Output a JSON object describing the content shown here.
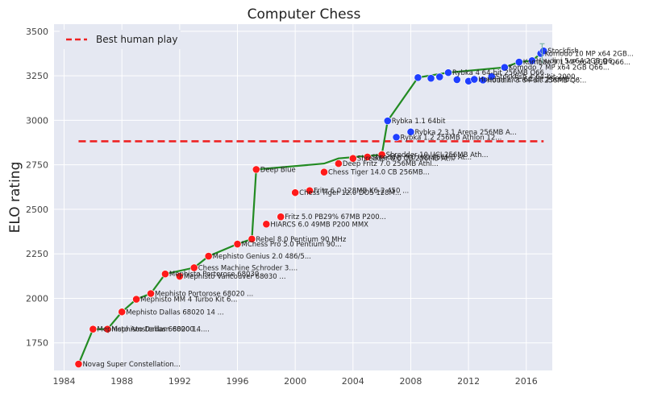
{
  "chart_data": {
    "type": "scatter",
    "title": "Computer Chess",
    "xlabel": "",
    "ylabel": "ELO rating",
    "xlim": [
      1983.3,
      2017.8
    ],
    "ylim": [
      1595,
      3540
    ],
    "xticks": [
      1984,
      1988,
      1992,
      1996,
      2000,
      2004,
      2008,
      2012,
      2016
    ],
    "yticks": [
      1750,
      2000,
      2250,
      2500,
      2750,
      3000,
      3250,
      3500
    ],
    "grid": true,
    "colors": {
      "background": "#e5e8f2",
      "grid": "#ffffff",
      "record_line": "#228b22",
      "red_point": "#ff1a1a",
      "blue_point": "#1f3fff",
      "human_line": "#ee2222",
      "error_bar": "#7fb8a8"
    },
    "best_human_play": {
      "label": "Best human play",
      "y": 2882,
      "x_range": [
        1985,
        2017.2
      ]
    },
    "legend": {
      "position": "top-left",
      "entries": [
        "Best human play"
      ]
    },
    "record_line": [
      [
        1985,
        1631
      ],
      [
        1986,
        1827
      ],
      [
        1987,
        1827
      ],
      [
        1988,
        1924
      ],
      [
        1989,
        1995
      ],
      [
        1990,
        2027
      ],
      [
        1991,
        2137
      ],
      [
        1993,
        2172
      ],
      [
        1994,
        2237
      ],
      [
        1996,
        2305
      ],
      [
        1997,
        2333
      ],
      [
        1997.3,
        2724
      ],
      [
        2002,
        2757
      ],
      [
        2003,
        2786
      ],
      [
        2006,
        2807
      ],
      [
        2006.4,
        2997
      ],
      [
        2008.5,
        3240
      ],
      [
        2010.6,
        3268
      ],
      [
        2014.5,
        3297
      ],
      [
        2015.5,
        3327
      ],
      [
        2016.4,
        3335
      ],
      [
        2017,
        3375
      ]
    ],
    "points": [
      {
        "x": 1985,
        "y": 1631,
        "color": "red",
        "label": "Novag Super Constellation..."
      },
      {
        "x": 1986,
        "y": 1827,
        "color": "red",
        "label": "Mephisto Amsterdam 68000 ..."
      },
      {
        "x": 1987,
        "y": 1827,
        "color": "red",
        "label": "Mephisto Dallas 68020 14 ..."
      },
      {
        "x": 1988,
        "y": 1924,
        "color": "red",
        "label": "Mephisto Dallas 68020 14 ..."
      },
      {
        "x": 1989,
        "y": 1995,
        "color": "red",
        "label": "Mephisto MM 4 Turbo Kit 6..."
      },
      {
        "x": 1990,
        "y": 2027,
        "color": "red",
        "label": "Mephisto Portorose 68020 ..."
      },
      {
        "x": 1991,
        "y": 2137,
        "color": "red",
        "label": "Mephisto Portorose 68030 ..."
      },
      {
        "x": 1992,
        "y": 2124,
        "color": "red",
        "label": "Mephisto Vancouver 68030 ..."
      },
      {
        "x": 1993,
        "y": 2172,
        "color": "red",
        "label": "Chess Machine Schroder 3...."
      },
      {
        "x": 1994,
        "y": 2237,
        "color": "red",
        "label": "Mephisto Genius 2.0 486/5..."
      },
      {
        "x": 1996,
        "y": 2305,
        "color": "red",
        "label": "MChess Pro 5.0 Pentium 90..."
      },
      {
        "x": 1997,
        "y": 2333,
        "color": "red",
        "label": "Rebel 8.0 Pentium 90 MHz"
      },
      {
        "x": 1997.3,
        "y": 2724,
        "color": "red",
        "label": "Deep Blue"
      },
      {
        "x": 1998,
        "y": 2417,
        "color": "red",
        "label": "HIARCS 6.0 49MB P200 MMX"
      },
      {
        "x": 1999,
        "y": 2458,
        "color": "red",
        "label": "Fritz 5.0 PB29% 67MB P200..."
      },
      {
        "x": 2000,
        "y": 2594,
        "color": "red",
        "label": "Chess Tiger 12.0 DOS 128M..."
      },
      {
        "x": 2001,
        "y": 2605,
        "color": "red",
        "label": "Fritz 6.0 128MB K6-2 450 ..."
      },
      {
        "x": 2002,
        "y": 2709,
        "color": "red",
        "label": "Chess Tiger 14.0 CB 256MB..."
      },
      {
        "x": 2003,
        "y": 2757,
        "color": "red",
        "label": "Deep Fritz 7.0 256MB Athl..."
      },
      {
        "x": 2004,
        "y": 2786,
        "color": "red",
        "label": "Shredder 8.0 CB 256MB At..."
      },
      {
        "x": 2005,
        "y": 2794,
        "color": "red",
        "label": "Shredder 9.0 UCI 256MB At..."
      },
      {
        "x": 2006,
        "y": 2807,
        "color": "red",
        "label": "Shredder 10 UCI 256MB Ath..."
      },
      {
        "x": 2006.4,
        "y": 2997,
        "color": "blue",
        "label": "Rybka 1.1 64bit"
      },
      {
        "x": 2007,
        "y": 2905,
        "color": "blue",
        "label": "Rybka 1.2 256MB Athlon 12..."
      },
      {
        "x": 2008,
        "y": 2935,
        "color": "blue",
        "label": "Rybka 2.3.1 Arena 256MB A..."
      },
      {
        "x": 2008.5,
        "y": 3240,
        "color": "blue",
        "label": ""
      },
      {
        "x": 2009.4,
        "y": 3236,
        "color": "blue",
        "label": ""
      },
      {
        "x": 2010,
        "y": 3244,
        "color": "blue",
        "label": ""
      },
      {
        "x": 2010.6,
        "y": 3268,
        "color": "blue",
        "label": "Rybka 4 64-bit 256MB Q66..."
      },
      {
        "x": 2011.2,
        "y": 3228,
        "color": "blue",
        "label": ""
      },
      {
        "x": 2012,
        "y": 3220,
        "color": "blue",
        "label": ""
      },
      {
        "x": 2012.4,
        "y": 3230,
        "color": "blue",
        "label": "Houdini 2.0c 64-bit 256MB..."
      },
      {
        "x": 2013,
        "y": 3226,
        "color": "blue",
        "label": "Houdini 3 64-bit 256MB Q6..."
      },
      {
        "x": 2013.6,
        "y": 3246,
        "color": "blue",
        "label": "Stockfish 4 64-bit 2000..."
      },
      {
        "x": 2014.5,
        "y": 3297,
        "color": "blue",
        "label": "Komodo 7 MP x64 2GB Q66..."
      },
      {
        "x": 2015.5,
        "y": 3327,
        "color": "blue",
        "label": "Komodo 9.1 MP x64 2GB Q66..."
      },
      {
        "x": 2016.4,
        "y": 3335,
        "color": "blue",
        "label": "Houdini 5 x64 2GB Q6..."
      },
      {
        "x": 2017,
        "y": 3375,
        "color": "blue",
        "label": "Komodo 10 MP x64 2GB..."
      },
      {
        "x": 2017.2,
        "y": 3390,
        "color": "blue",
        "label": "Stockfish"
      }
    ],
    "error_bar": {
      "x": 2017.1,
      "y_low": 3320,
      "y_high": 3430
    }
  }
}
